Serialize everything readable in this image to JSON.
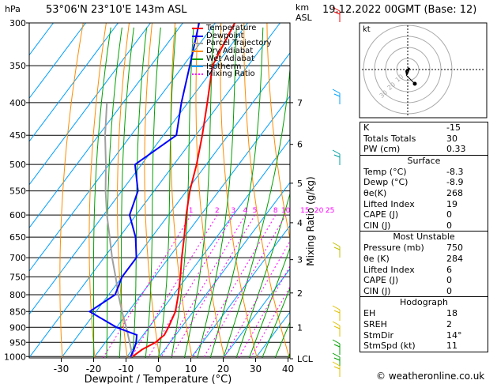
{
  "header": {
    "left_unit": "hPa",
    "location": "53°06'N  23°10'E  143m  ASL",
    "km_unit": "km",
    "asl_unit": "ASL",
    "datetime": "19.12.2022  00GMT  (Base: 12)"
  },
  "chart_data": {
    "type": "skew-t",
    "xlabel": "Dewpoint / Temperature (°C)",
    "ylabel_right": "Mixing Ratio (g/kg)",
    "pressure_ticks": [
      300,
      350,
      400,
      450,
      500,
      550,
      600,
      650,
      700,
      750,
      800,
      850,
      900,
      950,
      1000
    ],
    "temp_ticks": [
      -30,
      -20,
      -10,
      0,
      10,
      20,
      30,
      40
    ],
    "km_ticks": [
      {
        "label": "7",
        "p": 400
      },
      {
        "label": "6",
        "p": 465
      },
      {
        "label": "5",
        "p": 535
      },
      {
        "label": "4",
        "p": 617
      },
      {
        "label": "3",
        "p": 705
      },
      {
        "label": "2",
        "p": 795
      },
      {
        "label": "1",
        "p": 900
      },
      {
        "label": "LCL",
        "p": 1008
      }
    ],
    "mixing_ratio_labels": [
      "1",
      "2",
      "3",
      "4",
      "5",
      "8",
      "10",
      "15",
      "20",
      "25"
    ],
    "legend": [
      {
        "name": "Temperature",
        "color": "#ff0000"
      },
      {
        "name": "Dewpoint",
        "color": "#0000ff"
      },
      {
        "name": "Parcel Trajectory",
        "color": "#a0a0a0"
      },
      {
        "name": "Dry Adiabat",
        "color": "#ff8c00"
      },
      {
        "name": "Wet Adiabat",
        "color": "#00a000"
      },
      {
        "name": "Isotherm",
        "color": "#00a0ff"
      },
      {
        "name": "Mixing Ratio",
        "color": "#ff00ff"
      }
    ],
    "temperature": [
      {
        "p": 1000,
        "t": -8.3
      },
      {
        "p": 975,
        "t": -7
      },
      {
        "p": 950,
        "t": -4.5
      },
      {
        "p": 925,
        "t": -3.5
      },
      {
        "p": 900,
        "t": -4
      },
      {
        "p": 850,
        "t": -5.5
      },
      {
        "p": 800,
        "t": -8.5
      },
      {
        "p": 750,
        "t": -12
      },
      {
        "p": 700,
        "t": -16
      },
      {
        "p": 650,
        "t": -20
      },
      {
        "p": 600,
        "t": -24.5
      },
      {
        "p": 550,
        "t": -29
      },
      {
        "p": 500,
        "t": -33
      },
      {
        "p": 450,
        "t": -38
      },
      {
        "p": 400,
        "t": -44
      },
      {
        "p": 350,
        "t": -51
      },
      {
        "p": 300,
        "t": -54
      }
    ],
    "dewpoint": [
      {
        "p": 1000,
        "t": -8.9
      },
      {
        "p": 975,
        "t": -9.5
      },
      {
        "p": 950,
        "t": -10.5
      },
      {
        "p": 925,
        "t": -12
      },
      {
        "p": 900,
        "t": -20
      },
      {
        "p": 850,
        "t": -32
      },
      {
        "p": 800,
        "t": -28
      },
      {
        "p": 750,
        "t": -30
      },
      {
        "p": 700,
        "t": -30
      },
      {
        "p": 650,
        "t": -35
      },
      {
        "p": 600,
        "t": -42
      },
      {
        "p": 550,
        "t": -45
      },
      {
        "p": 500,
        "t": -52
      },
      {
        "p": 450,
        "t": -46
      },
      {
        "p": 400,
        "t": -52
      },
      {
        "p": 350,
        "t": -58
      },
      {
        "p": 300,
        "t": -65
      }
    ],
    "parcel": [
      {
        "p": 1000,
        "t": -8.3
      },
      {
        "p": 950,
        "t": -12.5
      },
      {
        "p": 900,
        "t": -17
      },
      {
        "p": 850,
        "t": -22
      },
      {
        "p": 800,
        "t": -27
      },
      {
        "p": 750,
        "t": -32
      },
      {
        "p": 700,
        "t": -37.5
      },
      {
        "p": 650,
        "t": -43
      },
      {
        "p": 600,
        "t": -49
      },
      {
        "p": 550,
        "t": -55
      },
      {
        "p": 500,
        "t": -61
      },
      {
        "p": 450,
        "t": -68
      },
      {
        "p": 400,
        "t": -75
      }
    ]
  },
  "hodograph": {
    "label": "kt",
    "ring_labels": [
      "10",
      "20",
      "30"
    ]
  },
  "indices": {
    "k_label": "K",
    "k_value": "-15",
    "tt_label": "Totals Totals",
    "tt_value": "30",
    "pw_label": "PW (cm)",
    "pw_value": "0.33"
  },
  "surface": {
    "title": "Surface",
    "rows": [
      {
        "label": "Temp (°C)",
        "value": "-8.3"
      },
      {
        "label": "Dewp (°C)",
        "value": "-8.9"
      },
      {
        "label": "θe(K)",
        "value": "268"
      },
      {
        "label": "Lifted Index",
        "value": "19"
      },
      {
        "label": "CAPE (J)",
        "value": "0"
      },
      {
        "label": "CIN (J)",
        "value": "0"
      }
    ]
  },
  "most_unstable": {
    "title": "Most Unstable",
    "rows": [
      {
        "label": "Pressure (mb)",
        "value": "750"
      },
      {
        "label": "θe (K)",
        "value": "284"
      },
      {
        "label": "Lifted Index",
        "value": "6"
      },
      {
        "label": "CAPE (J)",
        "value": "0"
      },
      {
        "label": "CIN (J)",
        "value": "0"
      }
    ]
  },
  "hodograph_table": {
    "title": "Hodograph",
    "rows": [
      {
        "label": "EH",
        "value": "18"
      },
      {
        "label": "SREH",
        "value": "2"
      },
      {
        "label": "StmDir",
        "value": "14°"
      },
      {
        "label": "StmSpd (kt)",
        "value": "11"
      }
    ]
  },
  "footer": {
    "copyright": "© weatheronline.co.uk"
  }
}
